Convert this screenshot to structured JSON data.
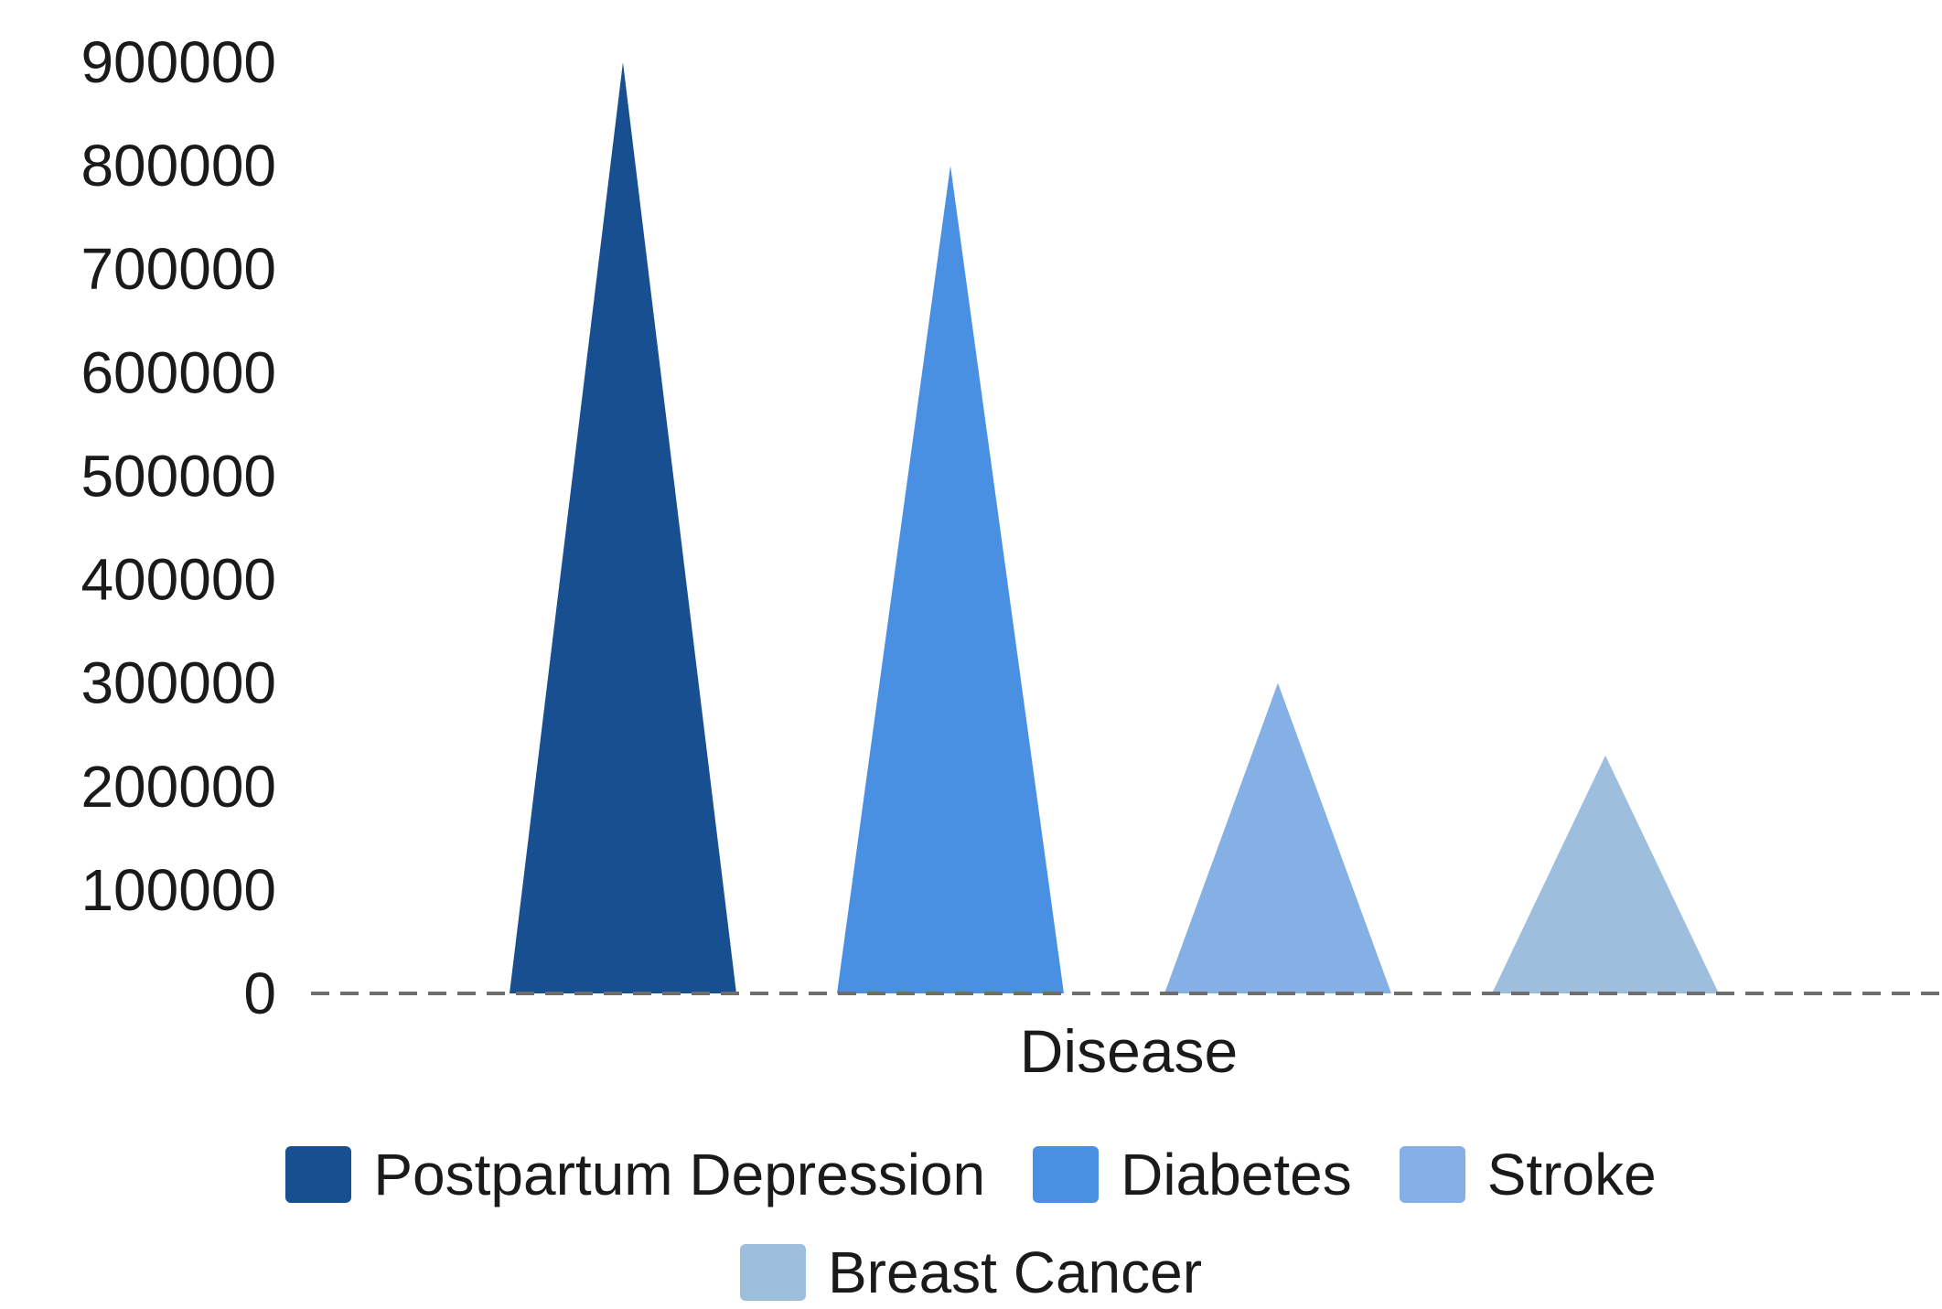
{
  "chart_data": {
    "type": "bar",
    "shape": "triangle",
    "xlabel": "Disease",
    "ylabel": "",
    "ylim": [
      0,
      900000
    ],
    "yticks": [
      0,
      100000,
      200000,
      300000,
      400000,
      500000,
      600000,
      700000,
      800000,
      900000
    ],
    "grid": false,
    "legend_position": "bottom",
    "baseline_style": "dashed",
    "series": [
      {
        "name": "Postpartum Depression",
        "value": 900000,
        "color": "#174f91"
      },
      {
        "name": "Diabetes",
        "value": 800000,
        "color": "#4a90e2"
      },
      {
        "name": "Stroke",
        "value": 300000,
        "color": "#84b0e6"
      },
      {
        "name": "Breast Cancer",
        "value": 230000,
        "color": "#9ebede"
      }
    ]
  }
}
